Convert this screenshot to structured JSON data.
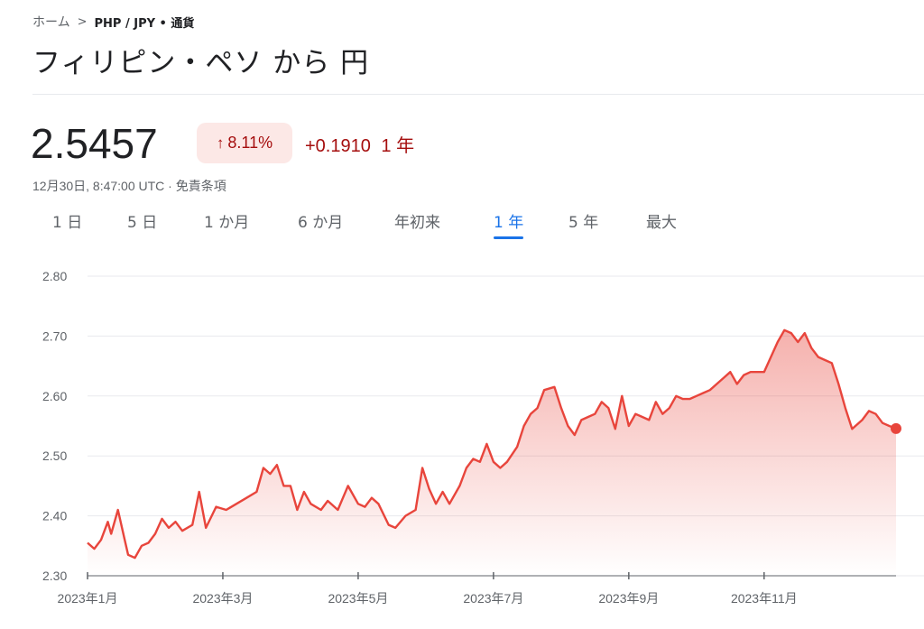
{
  "breadcrumb": {
    "home": "ホーム",
    "current": "PHP / JPY • 通貨"
  },
  "title": "フィリピン・ペソ から 円",
  "quote": {
    "price": "2.5457",
    "change_pct": "8.11%",
    "change_abs": "+0.1910",
    "period": "1 年",
    "timestamp": "12月30日, 8:47:00 UTC · 免責条項"
  },
  "tabs": [
    {
      "label": "1 日",
      "active": false
    },
    {
      "label": "5 日",
      "active": false
    },
    {
      "label": "1 か月",
      "active": false
    },
    {
      "label": "6 か月",
      "active": false
    },
    {
      "label": "年初来",
      "active": false
    },
    {
      "label": "1 年",
      "active": true
    },
    {
      "label": "5 年",
      "active": false
    },
    {
      "label": "最大",
      "active": false
    }
  ],
  "colors": {
    "line": "#e8453c",
    "accent": "#1a73e8",
    "negative_text": "#a50e0e",
    "badge_bg": "#fce8e6"
  },
  "chart_data": {
    "type": "area",
    "ylim": [
      2.3,
      2.8
    ],
    "yticks": [
      "2.80",
      "2.70",
      "2.60",
      "2.50",
      "2.40",
      "2.30"
    ],
    "xticks": [
      "2023年1月",
      "2023年3月",
      "2023年5月",
      "2023年7月",
      "2023年9月",
      "2023年11月"
    ],
    "xtick_index": [
      0,
      2,
      4,
      6,
      8,
      10
    ],
    "month_span": 11.95,
    "grid": true,
    "series": [
      {
        "values": [
          [
            0.0,
            2.355
          ],
          [
            0.1,
            2.345
          ],
          [
            0.2,
            2.36
          ],
          [
            0.3,
            2.39
          ],
          [
            0.35,
            2.37
          ],
          [
            0.45,
            2.41
          ],
          [
            0.55,
            2.36
          ],
          [
            0.6,
            2.335
          ],
          [
            0.7,
            2.33
          ],
          [
            0.8,
            2.35
          ],
          [
            0.9,
            2.355
          ],
          [
            1.0,
            2.37
          ],
          [
            1.1,
            2.395
          ],
          [
            1.2,
            2.38
          ],
          [
            1.3,
            2.39
          ],
          [
            1.4,
            2.375
          ],
          [
            1.55,
            2.385
          ],
          [
            1.65,
            2.44
          ],
          [
            1.75,
            2.38
          ],
          [
            1.9,
            2.415
          ],
          [
            2.05,
            2.41
          ],
          [
            2.2,
            2.42
          ],
          [
            2.35,
            2.43
          ],
          [
            2.5,
            2.44
          ],
          [
            2.6,
            2.48
          ],
          [
            2.7,
            2.47
          ],
          [
            2.8,
            2.485
          ],
          [
            2.9,
            2.45
          ],
          [
            3.0,
            2.45
          ],
          [
            3.1,
            2.41
          ],
          [
            3.2,
            2.44
          ],
          [
            3.3,
            2.42
          ],
          [
            3.45,
            2.41
          ],
          [
            3.55,
            2.425
          ],
          [
            3.7,
            2.41
          ],
          [
            3.85,
            2.45
          ],
          [
            4.0,
            2.42
          ],
          [
            4.1,
            2.415
          ],
          [
            4.2,
            2.43
          ],
          [
            4.3,
            2.42
          ],
          [
            4.45,
            2.385
          ],
          [
            4.55,
            2.38
          ],
          [
            4.7,
            2.4
          ],
          [
            4.85,
            2.41
          ],
          [
            4.95,
            2.48
          ],
          [
            5.05,
            2.445
          ],
          [
            5.15,
            2.42
          ],
          [
            5.25,
            2.44
          ],
          [
            5.35,
            2.42
          ],
          [
            5.5,
            2.45
          ],
          [
            5.6,
            2.48
          ],
          [
            5.7,
            2.495
          ],
          [
            5.8,
            2.49
          ],
          [
            5.9,
            2.52
          ],
          [
            6.0,
            2.49
          ],
          [
            6.1,
            2.48
          ],
          [
            6.2,
            2.49
          ],
          [
            6.35,
            2.515
          ],
          [
            6.45,
            2.55
          ],
          [
            6.55,
            2.57
          ],
          [
            6.65,
            2.58
          ],
          [
            6.75,
            2.61
          ],
          [
            6.9,
            2.615
          ],
          [
            7.0,
            2.58
          ],
          [
            7.1,
            2.55
          ],
          [
            7.2,
            2.535
          ],
          [
            7.3,
            2.56
          ],
          [
            7.4,
            2.565
          ],
          [
            7.5,
            2.57
          ],
          [
            7.6,
            2.59
          ],
          [
            7.7,
            2.58
          ],
          [
            7.8,
            2.545
          ],
          [
            7.9,
            2.6
          ],
          [
            8.0,
            2.55
          ],
          [
            8.1,
            2.57
          ],
          [
            8.2,
            2.565
          ],
          [
            8.3,
            2.56
          ],
          [
            8.4,
            2.59
          ],
          [
            8.5,
            2.57
          ],
          [
            8.6,
            2.58
          ],
          [
            8.7,
            2.6
          ],
          [
            8.8,
            2.595
          ],
          [
            8.9,
            2.595
          ],
          [
            9.0,
            2.6
          ],
          [
            9.1,
            2.605
          ],
          [
            9.2,
            2.61
          ],
          [
            9.3,
            2.62
          ],
          [
            9.4,
            2.63
          ],
          [
            9.5,
            2.64
          ],
          [
            9.6,
            2.62
          ],
          [
            9.7,
            2.635
          ],
          [
            9.8,
            2.64
          ],
          [
            9.9,
            2.64
          ],
          [
            10.0,
            2.64
          ],
          [
            10.1,
            2.665
          ],
          [
            10.2,
            2.69
          ],
          [
            10.3,
            2.71
          ],
          [
            10.4,
            2.705
          ],
          [
            10.5,
            2.69
          ],
          [
            10.6,
            2.705
          ],
          [
            10.7,
            2.68
          ],
          [
            10.8,
            2.665
          ],
          [
            10.9,
            2.66
          ],
          [
            11.0,
            2.655
          ],
          [
            11.1,
            2.62
          ],
          [
            11.2,
            2.58
          ],
          [
            11.3,
            2.545
          ],
          [
            11.45,
            2.56
          ],
          [
            11.55,
            2.575
          ],
          [
            11.65,
            2.57
          ],
          [
            11.75,
            2.555
          ],
          [
            11.85,
            2.55
          ],
          [
            11.95,
            2.5457
          ]
        ]
      }
    ]
  }
}
